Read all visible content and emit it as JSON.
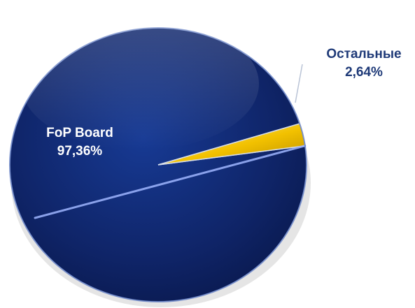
{
  "chart_data": {
    "type": "pie",
    "title": "",
    "slices": [
      {
        "name": "FoP Board",
        "value": 97.36,
        "value_label": "97,36%",
        "color": "#0e2466"
      },
      {
        "name": "Остальные",
        "value": 2.64,
        "value_label": "2,64%",
        "color": "#f2c100"
      }
    ],
    "legend": "none",
    "label_colors": {
      "inside": "#ffffff",
      "outside": "#1f3a78"
    }
  }
}
